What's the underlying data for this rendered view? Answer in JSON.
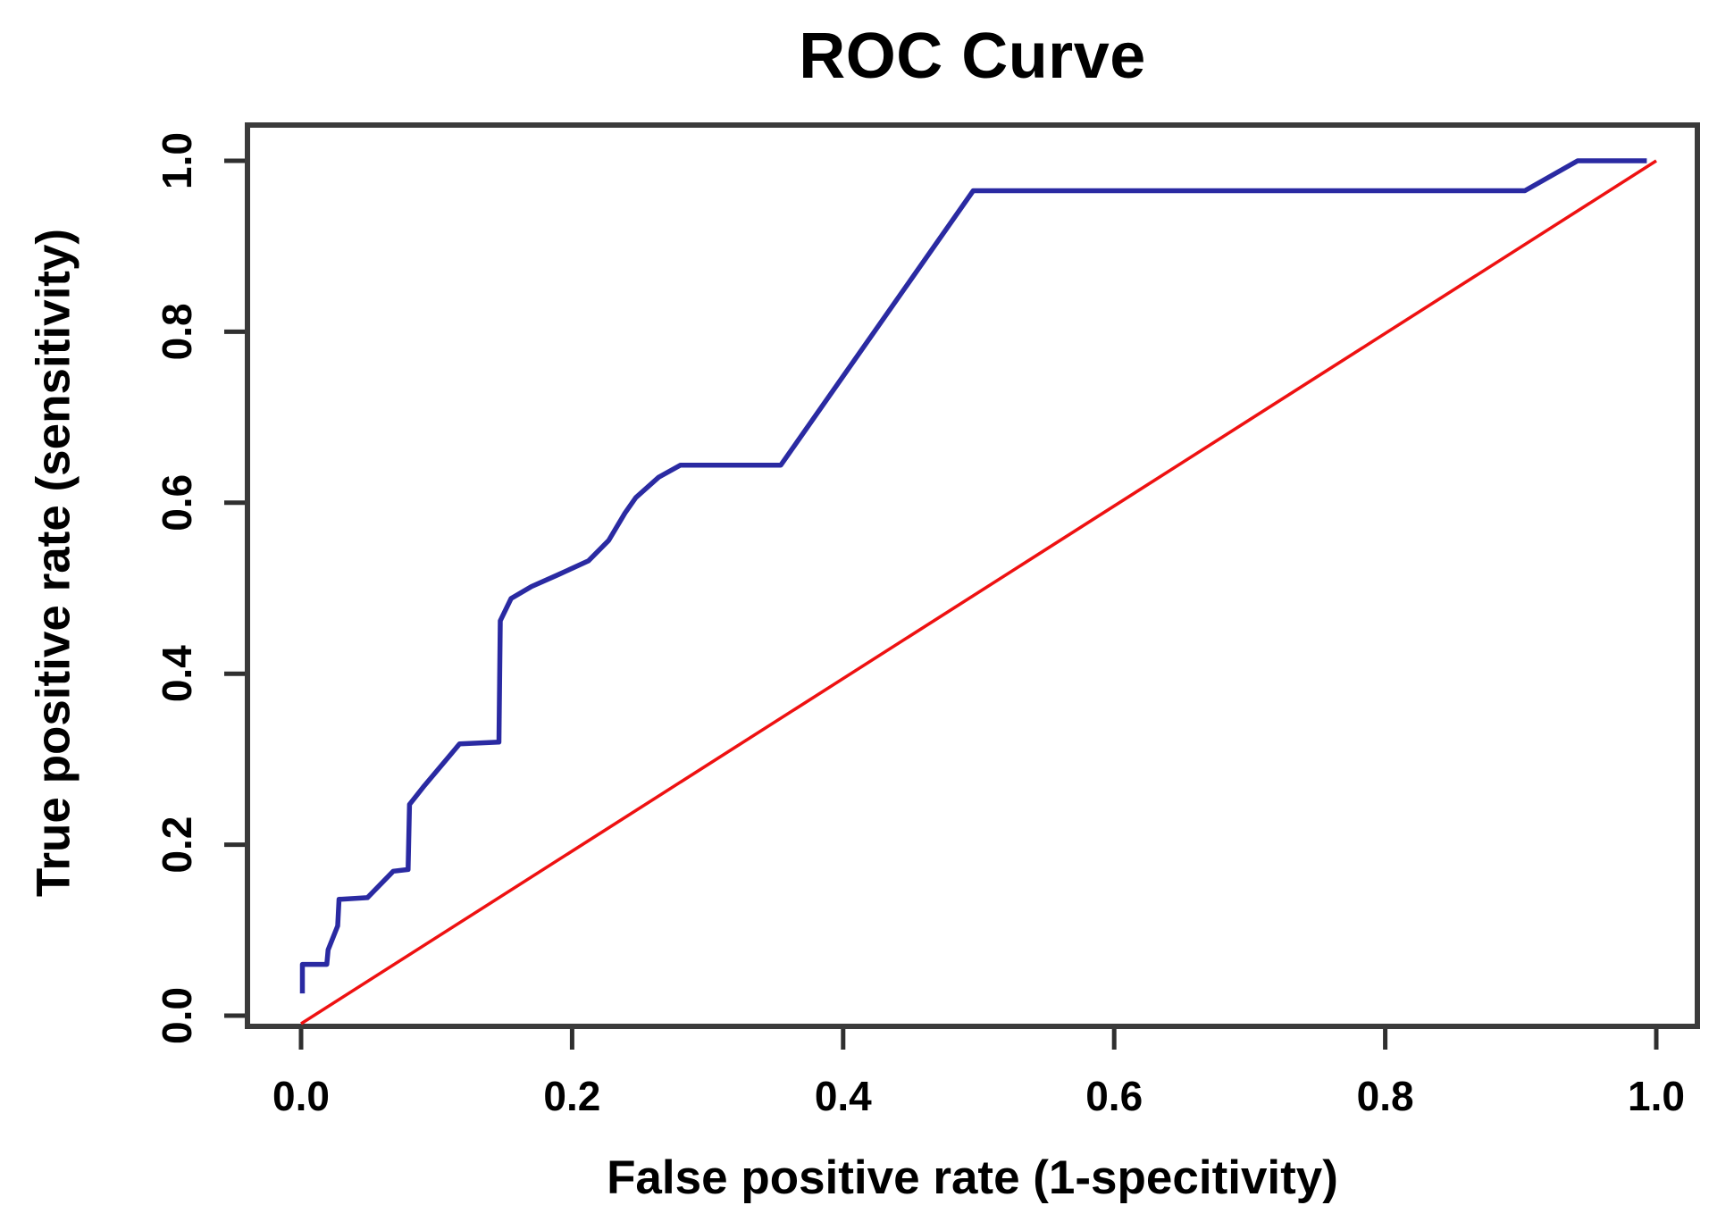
{
  "figure": {
    "background": "#ffffff"
  },
  "chart_data": {
    "type": "line",
    "title": "ROC Curve",
    "xlabel": "False positive rate (1-specitivity)",
    "ylabel": "True positive rate (sensitivity)",
    "xlim": [
      0.0,
      1.0
    ],
    "ylim": [
      0.0,
      1.0
    ],
    "grid": false,
    "legend": null,
    "xticks": {
      "values": [
        0.0,
        0.2,
        0.4,
        0.6,
        0.8,
        1.0
      ],
      "labels": [
        "0.0",
        "0.2",
        "0.4",
        "0.6",
        "0.8",
        "1.0"
      ]
    },
    "yticks": {
      "values": [
        0.0,
        0.2,
        0.4,
        0.6,
        0.8,
        1.0
      ],
      "labels": [
        "0.0",
        "0.2",
        "0.4",
        "0.6",
        "0.8",
        "1.0"
      ]
    },
    "series": [
      {
        "name": "chance-diagonal",
        "color": "#ee1111",
        "stroke_width": 3.5,
        "starts_at_axis": true,
        "points": [
          [
            0.0,
            0.0
          ],
          [
            1.0,
            1.0
          ]
        ]
      },
      {
        "name": "roc-curve",
        "color": "#2a2aa2",
        "stroke_width": 5.5,
        "starts_at_axis": false,
        "points": [
          [
            0.001,
            0.026
          ],
          [
            0.001,
            0.06
          ],
          [
            0.019,
            0.06
          ],
          [
            0.02,
            0.077
          ],
          [
            0.027,
            0.105
          ],
          [
            0.028,
            0.136
          ],
          [
            0.049,
            0.138
          ],
          [
            0.068,
            0.169
          ],
          [
            0.079,
            0.171
          ],
          [
            0.08,
            0.247
          ],
          [
            0.091,
            0.269
          ],
          [
            0.117,
            0.318
          ],
          [
            0.146,
            0.32
          ],
          [
            0.147,
            0.462
          ],
          [
            0.155,
            0.488
          ],
          [
            0.17,
            0.502
          ],
          [
            0.19,
            0.516
          ],
          [
            0.212,
            0.532
          ],
          [
            0.227,
            0.556
          ],
          [
            0.239,
            0.588
          ],
          [
            0.247,
            0.606
          ],
          [
            0.264,
            0.63
          ],
          [
            0.28,
            0.644
          ],
          [
            0.354,
            0.644
          ],
          [
            0.496,
            0.965
          ],
          [
            0.903,
            0.965
          ],
          [
            0.942,
            1.0
          ],
          [
            0.993,
            1.0
          ]
        ]
      }
    ]
  },
  "style": {
    "box_color": "#3b3b3b",
    "tick_color": "#2f2f2f",
    "text_color": "#000000"
  }
}
